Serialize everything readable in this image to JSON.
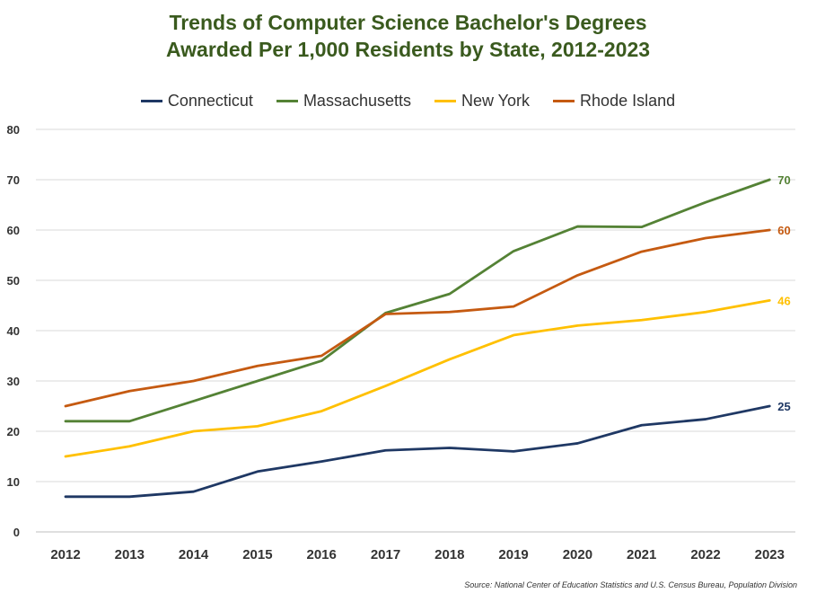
{
  "chart_data": {
    "type": "line",
    "title_line1": "Trends of Computer Science Bachelor's Degrees",
    "title_line2": "Awarded Per 1,000 Residents by State, 2012-2023",
    "xlabel": "",
    "ylabel": "",
    "x": [
      "2012",
      "2013",
      "2014",
      "2015",
      "2016",
      "2017",
      "2018",
      "2019",
      "2020",
      "2021",
      "2022",
      "2023"
    ],
    "ylim": [
      0,
      80
    ],
    "yticks": [
      0,
      10,
      20,
      30,
      40,
      50,
      60,
      70,
      80
    ],
    "grid": true,
    "legend_position": "top",
    "series": [
      {
        "name": "Connecticut",
        "color": "#1f3864",
        "end_label": "25",
        "values": [
          7,
          7,
          8,
          12,
          14,
          16.2,
          16.7,
          16,
          17.6,
          21.2,
          22.4,
          25
        ]
      },
      {
        "name": "Massachusetts",
        "color": "#548235",
        "end_label": "70",
        "values": [
          22,
          22,
          26,
          30,
          34,
          43.5,
          47.3,
          55.8,
          60.7,
          60.6,
          65.5,
          70
        ]
      },
      {
        "name": "New York",
        "color": "#ffc000",
        "end_label": "46",
        "values": [
          15,
          17,
          20,
          21,
          24,
          29,
          34.3,
          39.1,
          41,
          42.1,
          43.7,
          46
        ]
      },
      {
        "name": "Rhode Island",
        "color": "#c55a11",
        "end_label": "60",
        "values": [
          25,
          28,
          30,
          33,
          35,
          43.3,
          43.7,
          44.8,
          51,
          55.7,
          58.4,
          60
        ]
      }
    ],
    "source": "Source: National Center of Education Statistics and U.S. Census Bureau, Population Division"
  }
}
